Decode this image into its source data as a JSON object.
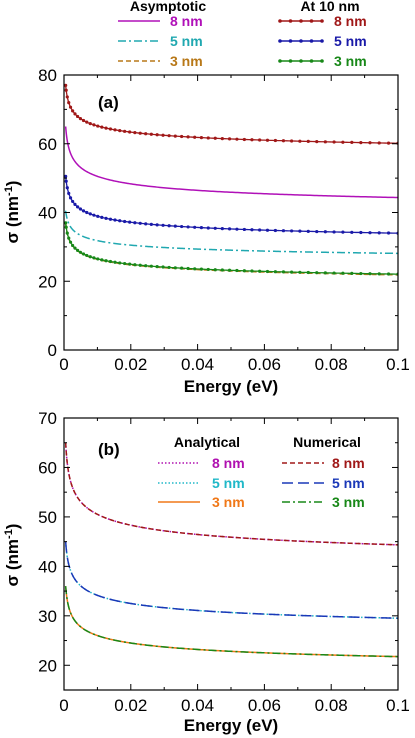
{
  "chart_data": [
    {
      "type": "line",
      "panel_label": "(a)",
      "xlabel": "Energy (eV)",
      "ylabel": "σ (nm",
      "ylabel_sup": "-1",
      "ylabel_close": ")",
      "xlim": [
        0,
        0.1
      ],
      "ylim": [
        0,
        80
      ],
      "xticks": [
        0,
        0.02,
        0.04,
        0.06,
        0.08,
        0.1
      ],
      "xtick_labels": [
        "0",
        "0.02",
        "0.04",
        "0.06",
        "0.08",
        "0.1"
      ],
      "yticks": [
        0,
        20,
        40,
        60,
        80
      ],
      "ytick_labels": [
        "0",
        "20",
        "40",
        "60",
        "80"
      ],
      "grid": false,
      "legend_groups": [
        {
          "title": "Asymptotic",
          "placement": "top-left"
        },
        {
          "title": "At 10 nm",
          "placement": "top-right"
        }
      ],
      "series": [
        {
          "group": 0,
          "name": "8 nm",
          "color": "#b010b8",
          "style": "solid",
          "markers": false,
          "y0": 65.0,
          "yinf": 35.0
        },
        {
          "group": 0,
          "name": "5 nm",
          "color": "#20a8b0",
          "style": "dashdot",
          "markers": false,
          "y0": 40.5,
          "yinf": 22.5
        },
        {
          "group": 0,
          "name": "3 nm",
          "color": "#b87818",
          "style": "dashed",
          "markers": false,
          "y0": 37.0,
          "yinf": 15.0
        },
        {
          "group": 1,
          "name": "8 nm",
          "color": "#a01818",
          "style": "solid",
          "markers": true,
          "y0": 77.0,
          "yinf": 52.5
        },
        {
          "group": 1,
          "name": "5 nm",
          "color": "#1a1aa8",
          "style": "solid",
          "markers": true,
          "y0": 50.5,
          "yinf": 26.5
        },
        {
          "group": 1,
          "name": "3 nm",
          "color": "#188818",
          "style": "solid",
          "markers": true,
          "y0": 37.0,
          "yinf": 15.3
        }
      ]
    },
    {
      "type": "line",
      "panel_label": "(b)",
      "xlabel": "Energy (eV)",
      "ylabel": "σ (nm",
      "ylabel_sup": "-1",
      "ylabel_close": ")",
      "xlim": [
        0,
        0.1
      ],
      "ylim": [
        15,
        70
      ],
      "xticks": [
        0,
        0.02,
        0.04,
        0.06,
        0.08,
        0.1
      ],
      "xtick_labels": [
        "0",
        "0.02",
        "0.04",
        "0.06",
        "0.08",
        "0.1"
      ],
      "yticks": [
        20,
        30,
        40,
        50,
        60,
        70
      ],
      "ytick_labels": [
        "20",
        "30",
        "40",
        "50",
        "60",
        "70"
      ],
      "grid": false,
      "legend_groups": [
        {
          "title": "Analytical",
          "placement": "top-center"
        },
        {
          "title": "Numerical",
          "placement": "top-right"
        }
      ],
      "series": [
        {
          "group": 0,
          "name": "8 nm",
          "color": "#b010b0",
          "style": "dotted",
          "markers": false,
          "y0": 65.0,
          "yinf": 35.0
        },
        {
          "group": 0,
          "name": "5 nm",
          "color": "#20b8c8",
          "style": "dotted",
          "markers": false,
          "y0": 45.0,
          "yinf": 22.5
        },
        {
          "group": 0,
          "name": "3 nm",
          "color": "#f07818",
          "style": "solid",
          "markers": false,
          "y0": 36.0,
          "yinf": 15.3
        },
        {
          "group": 1,
          "name": "8 nm",
          "color": "#a01818",
          "style": "dashed",
          "markers": false,
          "y0": 65.0,
          "yinf": 35.0
        },
        {
          "group": 1,
          "name": "5 nm",
          "color": "#1a38b8",
          "style": "longdash",
          "markers": false,
          "y0": 45.0,
          "yinf": 22.5
        },
        {
          "group": 1,
          "name": "3 nm",
          "color": "#188818",
          "style": "dashdot",
          "markers": false,
          "y0": 36.0,
          "yinf": 15.3
        }
      ]
    }
  ]
}
